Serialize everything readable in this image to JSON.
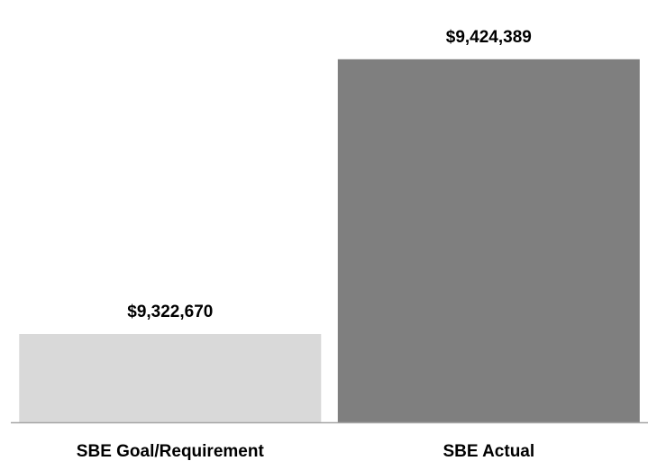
{
  "chart_data": {
    "type": "bar",
    "categories": [
      "SBE Goal/Requirement",
      "SBE Actual"
    ],
    "values": [
      9322670,
      9424389
    ],
    "data_labels": [
      "$9,322,670",
      "$9,424,389"
    ],
    "colors": [
      "#d9d9d9",
      "#7f7f7f"
    ],
    "title": "",
    "xlabel": "",
    "ylabel": "",
    "ylim": [
      9290000,
      9430000
    ],
    "grid": false,
    "legend": "none"
  },
  "colors": {
    "axis_line": "#a6a6a6",
    "text": "#000000"
  }
}
